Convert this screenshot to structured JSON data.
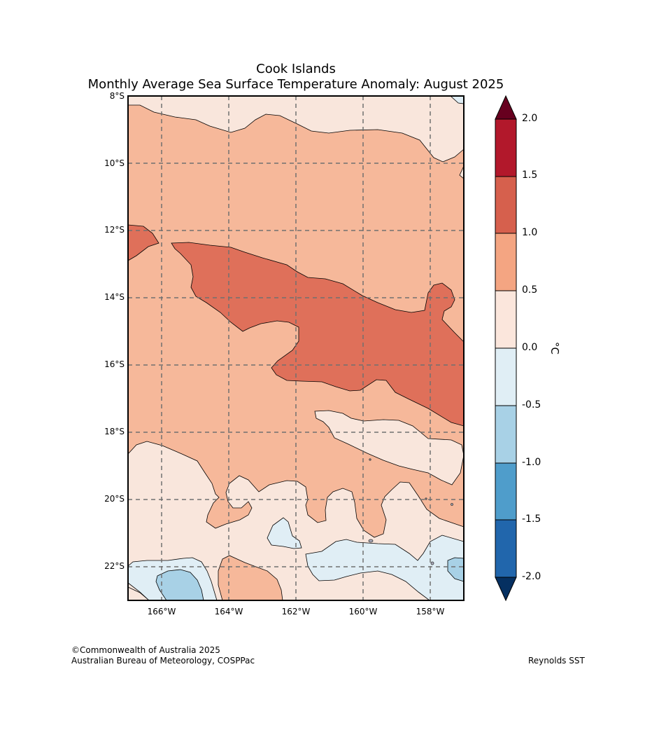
{
  "title": {
    "line1": "Cook Islands",
    "line2": "Monthly Average Sea Surface Temperature Anomaly: August 2025"
  },
  "latitude_labels": [
    "8°S",
    "10°S",
    "12°S",
    "14°S",
    "16°S",
    "18°S",
    "20°S",
    "22°S"
  ],
  "longitude_labels": [
    "166°W",
    "164°W",
    "162°W",
    "160°W",
    "158°W"
  ],
  "colorbar": {
    "ticks": [
      "2.0",
      "1.5",
      "1.0",
      "0.5",
      "0.0",
      "-0.5",
      "-1.0",
      "-1.5",
      "-2.0"
    ],
    "unit": "°C",
    "colors": {
      "over_2": "#67001f",
      "1.5_2.0": "#b2182b",
      "1.0_1.5": "#d6604d",
      "0.5_1.0": "#f4a582",
      "0.0_0.5": "#fbe6dc",
      "-0.5_0.0": "#e0eef5",
      "-1.0_-0.5": "#a8d1e6",
      "-1.5_-1.0": "#4f9dcb",
      "-2.0_-1.5": "#2166ac",
      "under_-2": "#053061"
    }
  },
  "credits": {
    "copyright": "©Commonwealth of Australia 2025",
    "agency": "Australian Bureau of Meteorology, COSPPac",
    "source": "Reynolds SST"
  }
}
